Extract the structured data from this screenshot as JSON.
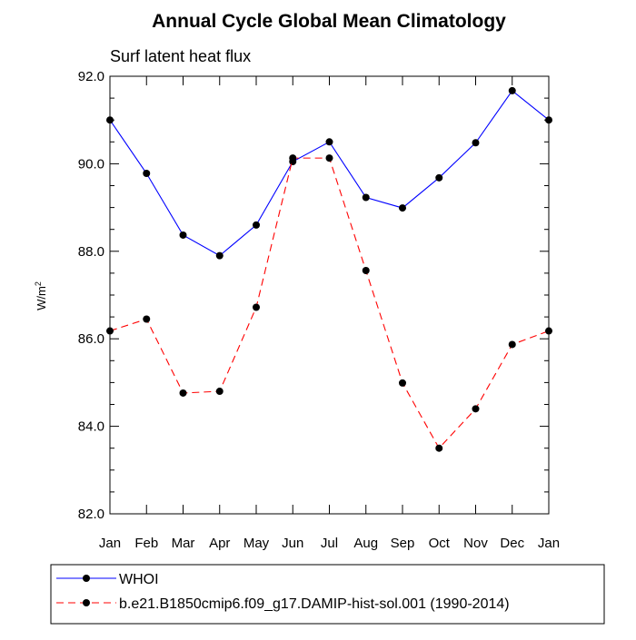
{
  "chart_data": {
    "type": "line",
    "title": "Annual Cycle Global Mean Climatology",
    "subtitle": "Surf latent heat flux",
    "xlabel": "",
    "ylabel": "W/m",
    "ylabel_sup": "2",
    "categories": [
      "Jan",
      "Feb",
      "Mar",
      "Apr",
      "May",
      "Jun",
      "Jul",
      "Aug",
      "Sep",
      "Oct",
      "Nov",
      "Dec",
      "Jan"
    ],
    "ylim": [
      82.0,
      92.0
    ],
    "yticks": [
      {
        "value": 82.0,
        "label": "82.0"
      },
      {
        "value": 84.0,
        "label": "84.0"
      },
      {
        "value": 86.0,
        "label": "86.0"
      },
      {
        "value": 88.0,
        "label": "88.0"
      },
      {
        "value": 90.0,
        "label": "90.0"
      },
      {
        "value": 92.0,
        "label": "92.0"
      }
    ],
    "yminor_step": 0.5,
    "grid": false,
    "legend_position": "bottom",
    "series": [
      {
        "name": "WHOI",
        "color": "#0000ff",
        "dashed": false,
        "values": [
          91.0,
          89.78,
          88.37,
          87.9,
          88.6,
          90.05,
          90.5,
          89.23,
          88.99,
          89.68,
          90.48,
          91.67,
          91.0
        ]
      },
      {
        "name": "b.e21.B1850cmip6.f09_g17.DAMIP-hist-sol.001 (1990-2014)",
        "color": "#ff0000",
        "dashed": true,
        "values": [
          86.18,
          86.45,
          84.76,
          84.8,
          86.72,
          90.13,
          90.13,
          87.56,
          84.99,
          83.5,
          84.4,
          85.87,
          86.18
        ]
      }
    ]
  }
}
